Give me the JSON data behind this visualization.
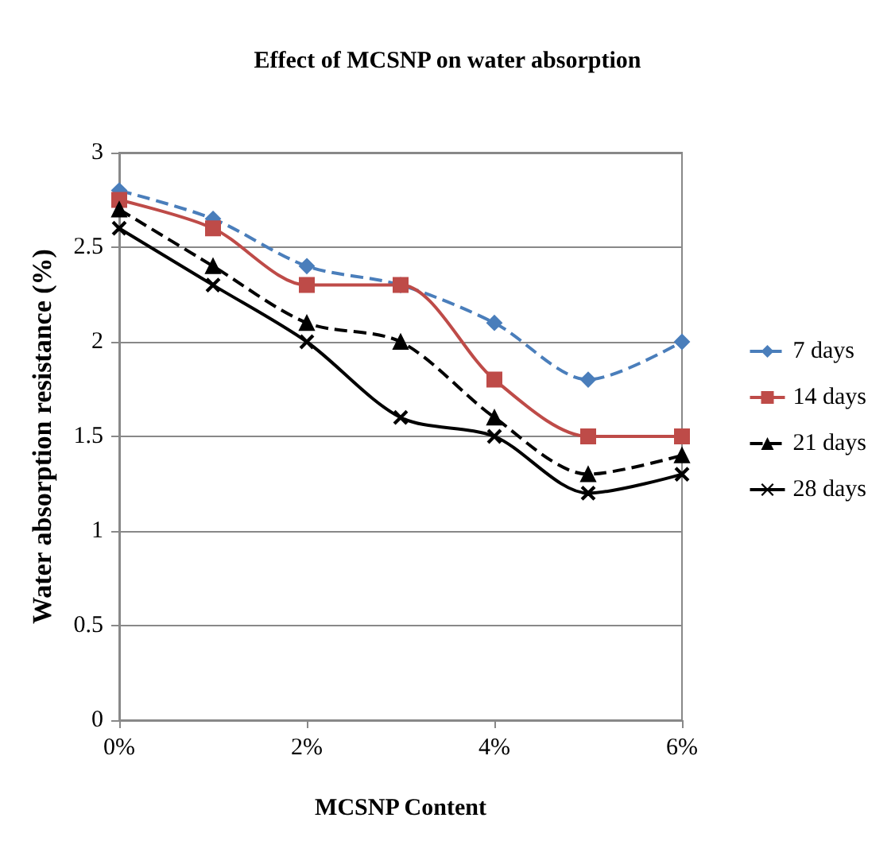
{
  "chart_data": {
    "type": "line",
    "title": "Effect of MCSNP on water absorption",
    "xlabel": "MCSNP Content",
    "ylabel": "Water absorption resistance (%)",
    "x": [
      0,
      1,
      2,
      3,
      4,
      5,
      6
    ],
    "series": [
      {
        "name": "7 days",
        "color": "#4a7ebb",
        "marker": "diamond",
        "line_style": "dashed",
        "values": [
          2.8,
          2.65,
          2.4,
          2.3,
          2.1,
          1.8,
          2.0
        ]
      },
      {
        "name": "14 days",
        "color": "#be4b48",
        "marker": "square",
        "line_style": "solid",
        "values": [
          2.75,
          2.6,
          2.3,
          2.3,
          1.8,
          1.5,
          1.5
        ]
      },
      {
        "name": "21 days",
        "color": "#000000",
        "marker": "triangle",
        "line_style": "dashed",
        "values": [
          2.7,
          2.4,
          2.1,
          2.0,
          1.6,
          1.3,
          1.4
        ]
      },
      {
        "name": "28 days",
        "color": "#000000",
        "marker": "cross",
        "line_style": "solid",
        "values": [
          2.6,
          2.3,
          2.0,
          1.6,
          1.5,
          1.2,
          1.3
        ]
      }
    ],
    "xlim": [
      0,
      6
    ],
    "xticks": [
      {
        "value": 0,
        "label": "0%"
      },
      {
        "value": 2,
        "label": "2%"
      },
      {
        "value": 4,
        "label": "4%"
      },
      {
        "value": 6,
        "label": "6%"
      }
    ],
    "ylim": [
      0,
      3
    ],
    "yticks": [
      0,
      0.5,
      1,
      1.5,
      2,
      2.5,
      3
    ],
    "grid": "y",
    "legend": "right"
  }
}
